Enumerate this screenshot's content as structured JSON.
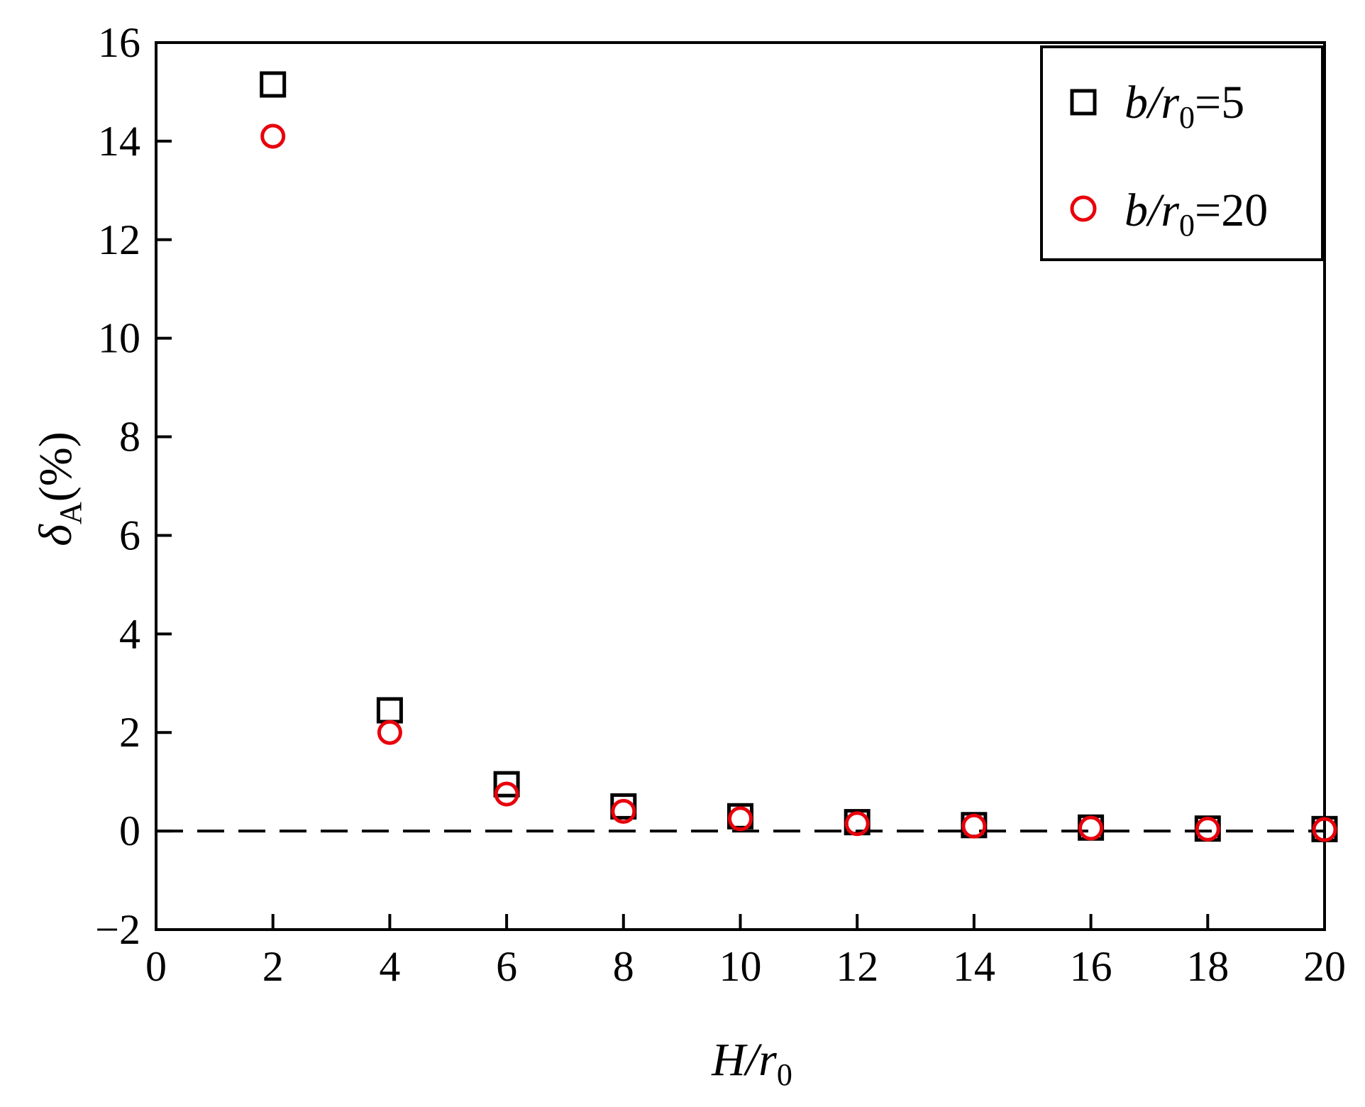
{
  "chart_data": {
    "type": "scatter",
    "title": "",
    "xlabel": {
      "main": "H/r",
      "sub": "0"
    },
    "ylabel": {
      "main": "δ",
      "sub": "A",
      "suffix": "(%)"
    },
    "xlim": [
      0,
      20
    ],
    "ylim": [
      -2,
      16
    ],
    "xticks": [
      0,
      2,
      4,
      6,
      8,
      10,
      12,
      14,
      16,
      18,
      20
    ],
    "yticks": [
      -2,
      0,
      2,
      4,
      6,
      8,
      10,
      12,
      14,
      16
    ],
    "ytick_labels": [
      "−2",
      "0",
      "2",
      "4",
      "6",
      "8",
      "10",
      "12",
      "14",
      "16"
    ],
    "grid": false,
    "reference_line": {
      "y": 0,
      "style": "dashed"
    },
    "legend": {
      "position": "top-right"
    },
    "series": [
      {
        "name": "b/r0=5",
        "label": {
          "pre": "b/r",
          "sub": "0",
          "post": "=5"
        },
        "marker": "square",
        "color": "#000000",
        "x": [
          2,
          4,
          6,
          8,
          10,
          12,
          14,
          16,
          18,
          20
        ],
        "y": [
          15.15,
          2.45,
          0.95,
          0.5,
          0.3,
          0.18,
          0.12,
          0.07,
          0.05,
          0.04
        ]
      },
      {
        "name": "b/r0=20",
        "label": {
          "pre": "b/r",
          "sub": "0",
          "post": "=20"
        },
        "marker": "circle",
        "color": "#e8000b",
        "x": [
          2,
          4,
          6,
          8,
          10,
          12,
          14,
          16,
          18,
          20
        ],
        "y": [
          14.1,
          2.0,
          0.75,
          0.4,
          0.25,
          0.15,
          0.1,
          0.06,
          0.04,
          0.03
        ]
      }
    ]
  }
}
